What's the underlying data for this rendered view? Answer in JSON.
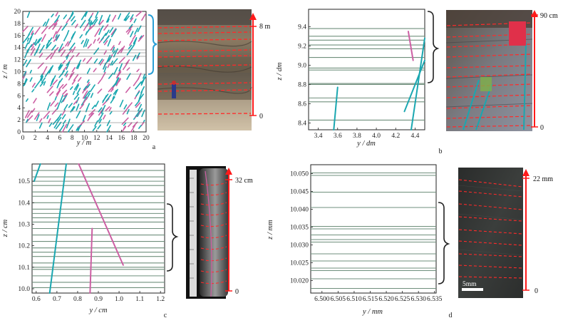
{
  "panels": [
    {
      "id": "a",
      "letter": "a",
      "xlabel": "y / m",
      "ylabel": "z / m",
      "xlim": [
        0,
        20
      ],
      "ylim": [
        0,
        20
      ],
      "xticks": [
        0,
        2,
        4,
        6,
        8,
        10,
        12,
        14,
        16,
        18,
        20
      ],
      "yticks": [
        0,
        2,
        4,
        6,
        8,
        10,
        12,
        14,
        16,
        18,
        20
      ],
      "xtick_labels": [
        "0",
        "2",
        "4",
        "6",
        "8",
        "10",
        "12",
        "14",
        "16",
        "18",
        "20"
      ],
      "ytick_labels": [
        "0",
        "2",
        "4",
        "6",
        "8",
        "10",
        "12",
        "14",
        "16",
        "18",
        "20"
      ],
      "photo_top_label": "8 m",
      "photo_bottom_label": "0",
      "fracture_colors": [
        "#1aa7b0",
        "#cc5fa3"
      ]
    },
    {
      "id": "b",
      "letter": "b",
      "xlabel": "y / dm",
      "ylabel": "z / dm",
      "xlim": [
        3.3,
        4.5
      ],
      "ylim": [
        8.33,
        9.58
      ],
      "xticks": [
        3.4,
        3.6,
        3.8,
        4.0,
        4.2,
        4.4
      ],
      "yticks": [
        8.4,
        8.6,
        8.8,
        9.0,
        9.2,
        9.4
      ],
      "xtick_labels": [
        "3.4",
        "3.6",
        "3.8",
        "4.0",
        "4.2",
        "4.4"
      ],
      "ytick_labels": [
        "8.4",
        "8.6",
        "8.8",
        "9.0",
        "9.2",
        "9.4"
      ],
      "layer_lines": [
        8.43,
        8.62,
        8.66,
        8.8,
        8.81,
        8.95,
        8.97,
        9.08,
        9.17,
        9.21,
        9.26,
        9.3,
        9.38
      ],
      "fractures": [
        {
          "color": "#1aa7b0",
          "x1": 3.56,
          "y1": 8.33,
          "x2": 3.6,
          "y2": 8.77
        },
        {
          "color": "#1aa7b0",
          "x1": 4.36,
          "y1": 8.33,
          "x2": 4.5,
          "y2": 9.28
        },
        {
          "color": "#1aa7b0",
          "x1": 4.29,
          "y1": 8.52,
          "x2": 4.5,
          "y2": 9.05
        },
        {
          "color": "#cc5fa3",
          "x1": 4.33,
          "y1": 9.35,
          "x2": 4.38,
          "y2": 9.05
        }
      ],
      "photo_top_label": "90 cm",
      "photo_bottom_label": "0"
    },
    {
      "id": "c",
      "letter": "c",
      "xlabel": "y / cm",
      "ylabel": "z / cm",
      "xlim": [
        0.58,
        1.22
      ],
      "ylim": [
        9.98,
        10.58
      ],
      "xticks": [
        0.6,
        0.7,
        0.8,
        0.9,
        1.0,
        1.1,
        1.2
      ],
      "yticks": [
        10.0,
        10.1,
        10.2,
        10.3,
        10.4,
        10.5
      ],
      "xtick_labels": [
        "0.6",
        "0.7",
        "0.8",
        "0.9",
        "1.0",
        "1.1",
        "1.2"
      ],
      "ytick_labels": [
        "10.0",
        "10.1",
        "10.2",
        "10.3",
        "10.4",
        "10.5"
      ],
      "layer_lines": [
        10.005,
        10.03,
        10.06,
        10.09,
        10.1,
        10.12,
        10.15,
        10.17,
        10.19,
        10.22,
        10.25,
        10.28,
        10.31,
        10.33,
        10.35,
        10.37,
        10.4,
        10.43,
        10.45,
        10.48,
        10.5,
        10.52,
        10.55
      ],
      "fractures": [
        {
          "color": "#1aa7b0",
          "x1": 0.665,
          "y1": 9.98,
          "x2": 0.745,
          "y2": 10.58
        },
        {
          "color": "#1aa7b0",
          "x1": 0.59,
          "y1": 10.5,
          "x2": 0.62,
          "y2": 10.58
        },
        {
          "color": "#cc5fa3",
          "x1": 0.805,
          "y1": 10.58,
          "x2": 1.02,
          "y2": 10.11
        },
        {
          "color": "#cc5fa3",
          "x1": 0.86,
          "y1": 9.98,
          "x2": 0.87,
          "y2": 10.28
        }
      ],
      "photo_top_label": "32 cm",
      "photo_bottom_label": "0"
    },
    {
      "id": "d",
      "letter": "d",
      "xlabel": "y / mm",
      "ylabel": "z / mm",
      "xlim": [
        6.4965,
        6.5355
      ],
      "ylim": [
        10.0165,
        10.0525
      ],
      "xticks": [
        6.5,
        6.505,
        6.51,
        6.515,
        6.52,
        6.525,
        6.53,
        6.535
      ],
      "yticks": [
        10.02,
        10.025,
        10.03,
        10.035,
        10.04,
        10.045,
        10.05
      ],
      "xtick_labels": [
        "6.500",
        "6.505",
        "6.510",
        "6.515",
        "6.520",
        "6.525",
        "6.530",
        "6.535"
      ],
      "ytick_labels": [
        "10.020",
        "10.025",
        "10.030",
        "10.035",
        "10.040",
        "10.045",
        "10.050"
      ],
      "layer_lines": [
        10.0178,
        10.0205,
        10.0228,
        10.0235,
        10.0255,
        10.0275,
        10.0308,
        10.0315,
        10.0328,
        10.0345,
        10.0352,
        10.0405,
        10.0448,
        10.0495,
        10.0502
      ],
      "photo_top_label": "22 mm",
      "photo_bottom_label": "0",
      "scale_bar_label": "5mm"
    }
  ],
  "colors": {
    "layer": "#6f8f7c",
    "cyan": "#1aa7b0",
    "magenta": "#cc5fa3",
    "blue_bracket": "#2a9fd6",
    "red_axis": "#ff1a1a",
    "dashed_red": "#ff2a2a",
    "black_bracket": "#222222"
  }
}
